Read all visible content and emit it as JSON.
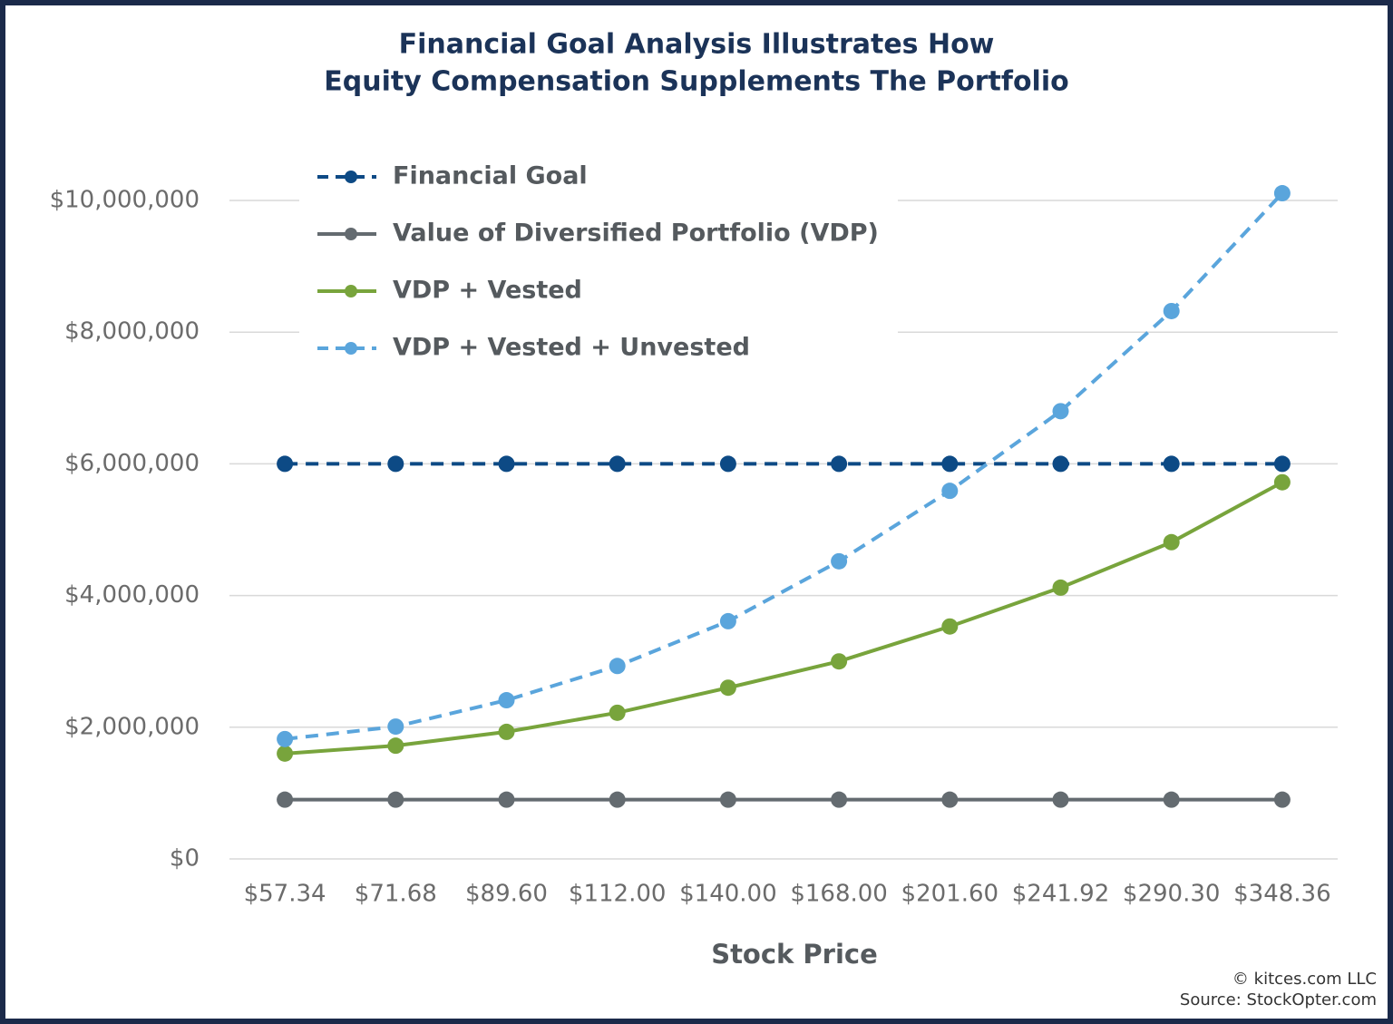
{
  "chart_data": {
    "type": "line",
    "title": [
      "Financial Goal Analysis Illustrates How",
      "Equity Compensation Supplements The Portfolio"
    ],
    "x_label": "Stock Price",
    "categories": [
      "$57.34",
      "$71.68",
      "$89.60",
      "$112.00",
      "$140.00",
      "$168.00",
      "$201.60",
      "$241.92",
      "$290.30",
      "$348.36"
    ],
    "series": [
      {
        "name": "Financial Goal",
        "color": "#0d4a85",
        "dashed": true,
        "values": [
          6000000,
          6000000,
          6000000,
          6000000,
          6000000,
          6000000,
          6000000,
          6000000,
          6000000,
          6000000
        ]
      },
      {
        "name": "Value of Diversified Portfolio (VDP)",
        "color": "#646b70",
        "dashed": false,
        "values": [
          900000,
          900000,
          900000,
          900000,
          900000,
          900000,
          900000,
          900000,
          900000,
          900000
        ]
      },
      {
        "name": "VDP + Vested",
        "color": "#78a43c",
        "dashed": false,
        "values": [
          1600000,
          1720000,
          1930000,
          2220000,
          2600000,
          3000000,
          3530000,
          4120000,
          4810000,
          5720000
        ]
      },
      {
        "name": "VDP + Vested + Unvested",
        "color": "#5aa5dc",
        "dashed": true,
        "values": [
          1820000,
          2010000,
          2410000,
          2930000,
          3610000,
          4520000,
          5590000,
          6800000,
          8320000,
          10110000
        ]
      }
    ],
    "ylim": [
      0,
      10000000
    ],
    "yticks": [
      {
        "value": 0,
        "label": "$0"
      },
      {
        "value": 2000000,
        "label": "$2,000,000"
      },
      {
        "value": 4000000,
        "label": "$4,000,000"
      },
      {
        "value": 6000000,
        "label": "$6,000,000"
      },
      {
        "value": 8000000,
        "label": "$8,000,000"
      },
      {
        "value": 10000000,
        "label": "$10,000,000"
      }
    ],
    "grid": true,
    "legend": "top-left",
    "footnotes": [
      "© kitces.com LLC",
      "Source: StockOpter.com"
    ]
  }
}
